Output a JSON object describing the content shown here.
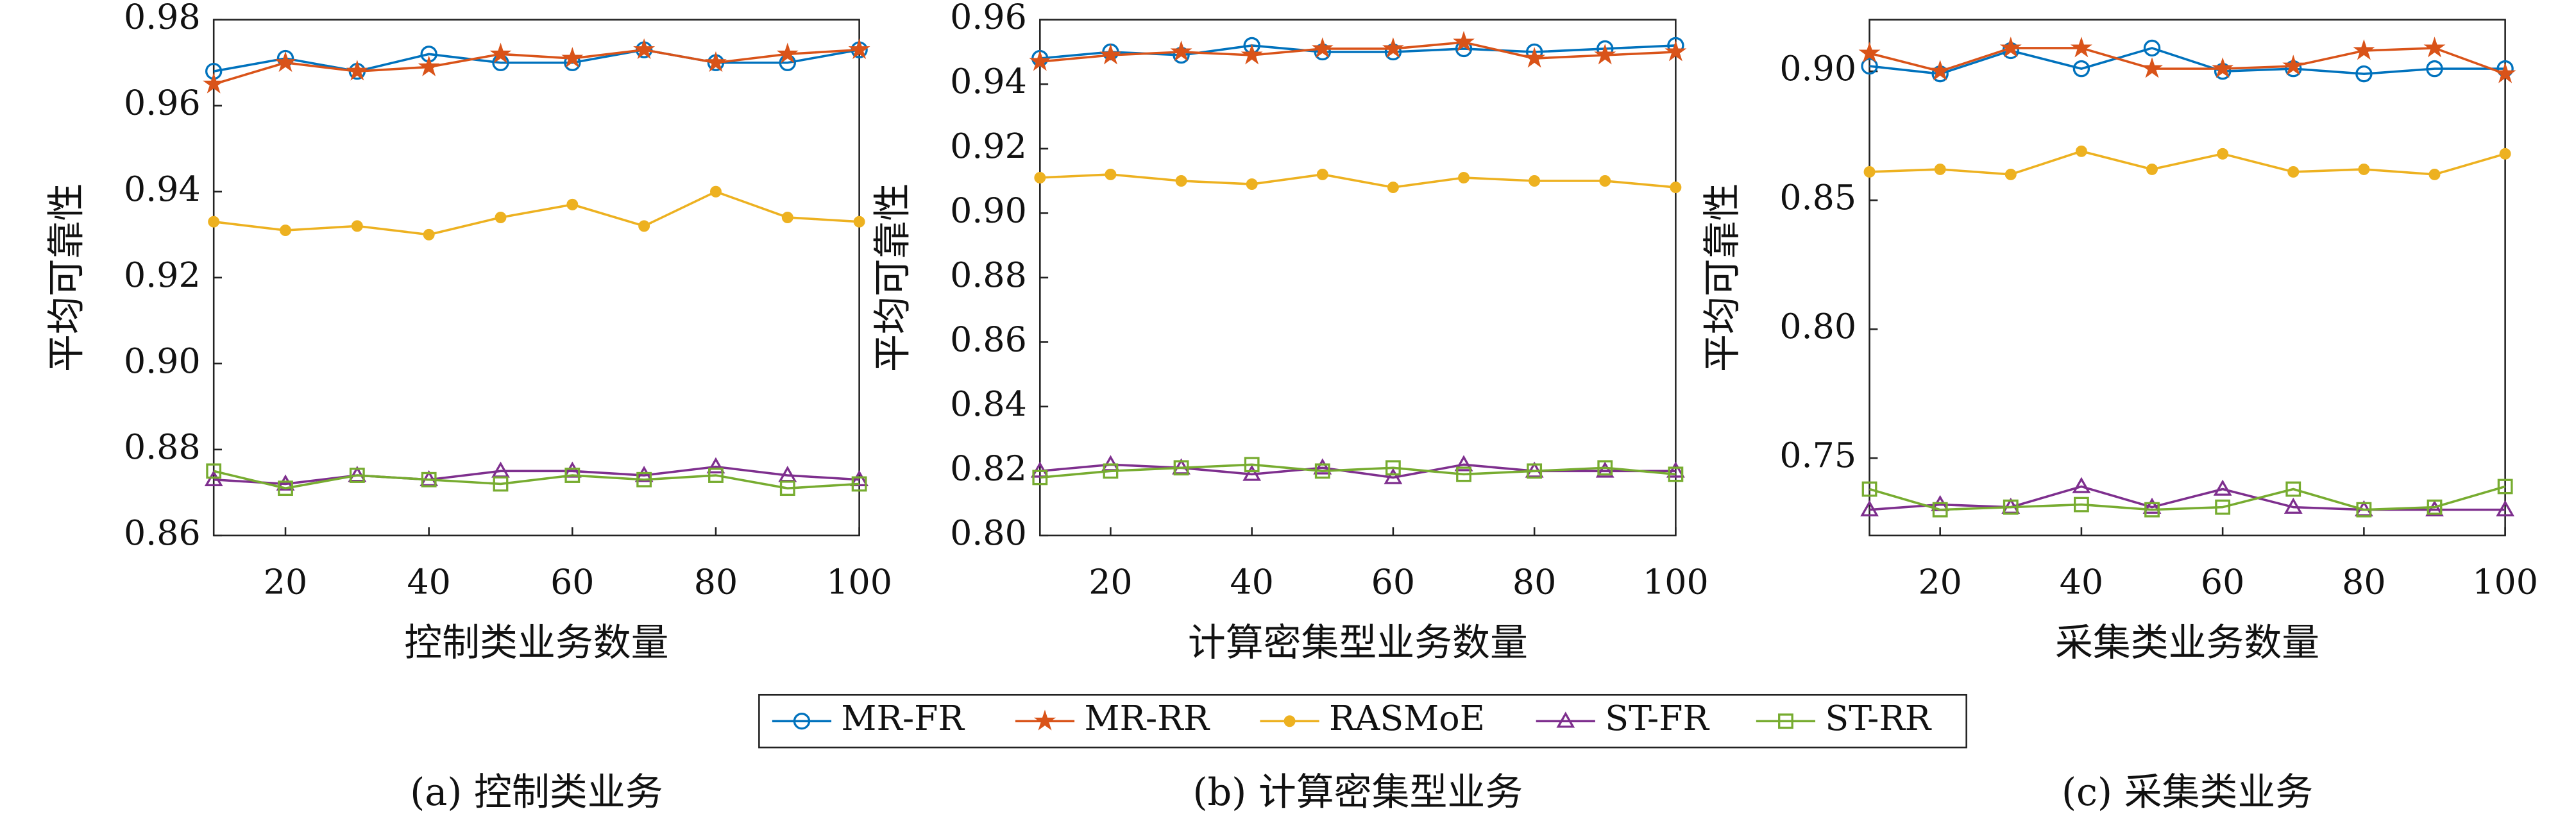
{
  "chart_data": [
    {
      "type": "line",
      "caption": "(a) 控制类业务",
      "xlabel": "控制类业务数量",
      "ylabel": "平均可靠性",
      "x": [
        10,
        20,
        30,
        40,
        50,
        60,
        70,
        80,
        90,
        100
      ],
      "xlim": [
        10,
        100
      ],
      "xticks": [
        20,
        40,
        60,
        80,
        100
      ],
      "ylim": [
        0.86,
        0.98
      ],
      "yticks": [
        0.86,
        0.88,
        {
          "value": 0.9,
          "label": "0.90"
        },
        0.92,
        0.94,
        0.96,
        0.98
      ],
      "series": [
        {
          "name": "MR-FR",
          "color": "#0072bd",
          "marker": "circle",
          "values": [
            0.968,
            0.971,
            0.968,
            0.972,
            0.97,
            0.97,
            0.973,
            0.97,
            0.97,
            0.973
          ]
        },
        {
          "name": "MR-RR",
          "color": "#d95319",
          "marker": "star",
          "values": [
            0.965,
            0.97,
            0.968,
            0.969,
            0.972,
            0.971,
            0.973,
            0.97,
            0.972,
            0.973
          ]
        },
        {
          "name": "RASMoE",
          "color": "#edb120",
          "marker": "dot",
          "values": [
            0.933,
            0.931,
            0.932,
            0.93,
            0.934,
            0.937,
            0.932,
            0.94,
            0.934,
            0.933
          ]
        },
        {
          "name": "ST-FR",
          "color": "#7e2f8e",
          "marker": "triangle",
          "values": [
            0.873,
            0.872,
            0.874,
            0.873,
            0.875,
            0.875,
            0.874,
            0.876,
            0.874,
            0.873
          ]
        },
        {
          "name": "ST-RR",
          "color": "#77ac30",
          "marker": "square",
          "values": [
            0.875,
            0.871,
            0.874,
            0.873,
            0.872,
            0.874,
            0.873,
            0.874,
            0.871,
            0.872
          ]
        }
      ]
    },
    {
      "type": "line",
      "caption": "(b) 计算密集型业务",
      "xlabel": "计算密集型业务数量",
      "ylabel": "平均可靠性",
      "x": [
        10,
        20,
        30,
        40,
        50,
        60,
        70,
        80,
        90,
        100
      ],
      "xlim": [
        10,
        100
      ],
      "xticks": [
        20,
        40,
        60,
        80,
        100
      ],
      "ylim": [
        0.8,
        0.96
      ],
      "yticks": [
        {
          "value": 0.8,
          "label": "0.80"
        },
        0.82,
        0.84,
        0.86,
        0.88,
        {
          "value": 0.9,
          "label": "0.90"
        },
        0.92,
        0.94,
        0.96
      ],
      "series": [
        {
          "name": "MR-FR",
          "color": "#0072bd",
          "marker": "circle",
          "values": [
            0.948,
            0.95,
            0.949,
            0.952,
            0.95,
            0.95,
            0.951,
            0.95,
            0.951,
            0.952
          ]
        },
        {
          "name": "MR-RR",
          "color": "#d95319",
          "marker": "star",
          "values": [
            0.947,
            0.949,
            0.95,
            0.949,
            0.951,
            0.951,
            0.953,
            0.948,
            0.949,
            0.95
          ]
        },
        {
          "name": "RASMoE",
          "color": "#edb120",
          "marker": "dot",
          "values": [
            0.911,
            0.912,
            0.91,
            0.909,
            0.912,
            0.908,
            0.911,
            0.91,
            0.91,
            0.908
          ]
        },
        {
          "name": "ST-FR",
          "color": "#7e2f8e",
          "marker": "triangle",
          "values": [
            0.82,
            0.822,
            0.821,
            0.819,
            0.821,
            0.818,
            0.822,
            0.82,
            0.82,
            0.82
          ]
        },
        {
          "name": "ST-RR",
          "color": "#77ac30",
          "marker": "square",
          "values": [
            0.818,
            0.82,
            0.821,
            0.822,
            0.82,
            0.821,
            0.819,
            0.82,
            0.821,
            0.819
          ]
        }
      ]
    },
    {
      "type": "line",
      "caption": "(c) 采集类业务",
      "xlabel": "采集类业务数量",
      "ylabel": "平均可靠性",
      "x": [
        10,
        20,
        30,
        40,
        50,
        60,
        70,
        80,
        90,
        100
      ],
      "xlim": [
        10,
        100
      ],
      "xticks": [
        20,
        40,
        60,
        80,
        100
      ],
      "ylim": [
        0.72,
        0.92
      ],
      "yticks": [
        0.75,
        {
          "value": 0.8,
          "label": "0.80"
        },
        0.85,
        {
          "value": 0.9,
          "label": "0.90"
        }
      ],
      "series": [
        {
          "name": "MR-FR",
          "color": "#0072bd",
          "marker": "circle",
          "values": [
            0.902,
            0.899,
            0.908,
            0.901,
            0.909,
            0.9,
            0.901,
            0.899,
            0.901,
            0.901
          ]
        },
        {
          "name": "MR-RR",
          "color": "#d95319",
          "marker": "star",
          "values": [
            0.907,
            0.9,
            0.909,
            0.909,
            0.901,
            0.901,
            0.902,
            0.908,
            0.909,
            0.899
          ]
        },
        {
          "name": "RASMoE",
          "color": "#edb120",
          "marker": "dot",
          "values": [
            0.861,
            0.862,
            0.86,
            0.869,
            0.862,
            0.868,
            0.861,
            0.862,
            0.86,
            0.868
          ]
        },
        {
          "name": "ST-FR",
          "color": "#7e2f8e",
          "marker": "triangle",
          "values": [
            0.73,
            0.732,
            0.731,
            0.739,
            0.731,
            0.738,
            0.731,
            0.73,
            0.73,
            0.73
          ]
        },
        {
          "name": "ST-RR",
          "color": "#77ac30",
          "marker": "square",
          "values": [
            0.738,
            0.73,
            0.731,
            0.732,
            0.73,
            0.731,
            0.738,
            0.73,
            0.731,
            0.739
          ]
        }
      ]
    }
  ]
}
